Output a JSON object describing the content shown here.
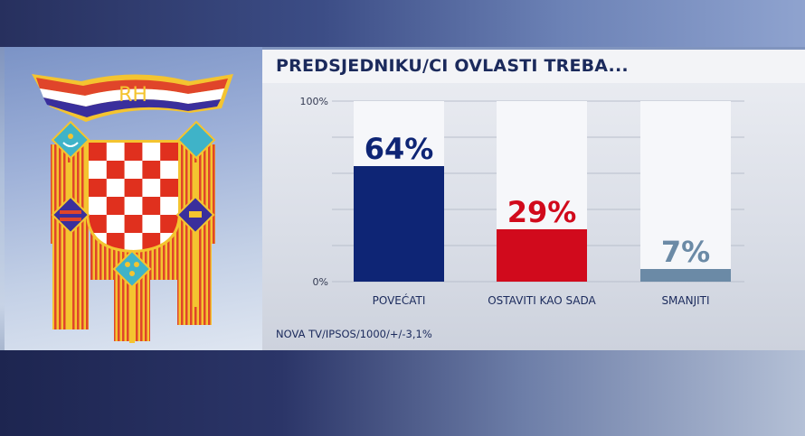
{
  "emblem": {
    "text": "RH"
  },
  "chart_data": {
    "type": "bar",
    "title": "PREDSJEDNIKU/CI OVLASTI TREBA...",
    "categories": [
      "POVEĆATI",
      "OSTAVITI KAO SADA",
      "SMANJITI"
    ],
    "values": [
      64,
      29,
      7
    ],
    "value_labels": [
      "64%",
      "29%",
      "7%"
    ],
    "colors": [
      "#0e2575",
      "#d10a1c",
      "#6b8aa6"
    ],
    "ylim": [
      0,
      100
    ],
    "ytick_labels": [
      "0%",
      "100%"
    ],
    "grid": true,
    "source": "NOVA TV/IPSOS/1000/+/-3,1%"
  }
}
